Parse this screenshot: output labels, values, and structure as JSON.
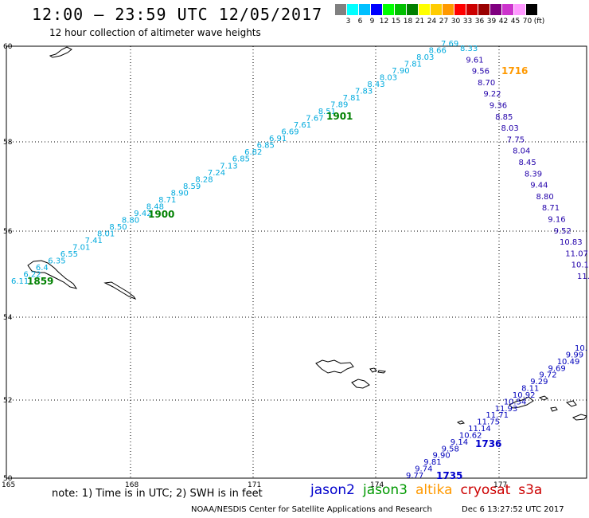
{
  "title": "12:00 – 23:59 UTC 12/05/2017",
  "subtitle": "12 hour collection of altimeter wave heights",
  "legend": {
    "colors": [
      "#808080",
      "#00ffff",
      "#00c0ff",
      "#0000ff",
      "#00ff00",
      "#00c000",
      "#008000",
      "#ffff00",
      "#ffcc00",
      "#ff9900",
      "#ff0000",
      "#cc0000",
      "#990000",
      "#800080",
      "#cc33cc",
      "#ff99ff",
      "#000000"
    ],
    "ticks": [
      "3",
      "6",
      "9",
      "12",
      "15",
      "18",
      "21",
      "24",
      "27",
      "30",
      "33",
      "36",
      "39",
      "42",
      "45",
      "70",
      "(ft)"
    ]
  },
  "axes": {
    "lat_labels": [
      "60",
      "58",
      "56",
      "54",
      "52",
      "50"
    ],
    "lon_labels": [
      "165",
      "168",
      "171",
      "174",
      "177"
    ]
  },
  "tracks": {
    "cyan": {
      "color": "#00b8e0",
      "values": [
        "6.11",
        "6.22",
        "6.4",
        "6.35",
        "6.55",
        "7.01",
        "7.41",
        "8.01",
        "8.50",
        "8.80",
        "9.42",
        "8.48",
        "8.71",
        "8.90",
        "8.59",
        "8.28",
        "7.24",
        "7.13",
        "6.85",
        "6.82",
        "6.85",
        "6.91",
        "6.69",
        "7.61",
        "7.67",
        "8.51",
        "7.89",
        "7.81",
        "7.83",
        "8.43",
        "8.03",
        "7.90",
        "7.81",
        "8.03",
        "8.66",
        "7.69"
      ]
    },
    "blue_north": {
      "color": "#00b8e0",
      "values": [
        "8.33",
        "9.61",
        "9.56",
        "8.70",
        "9.22",
        "9.36",
        "8.85",
        "8.03",
        "7.75",
        "8.04",
        "8.45",
        "8.39",
        "9.44",
        "8.80",
        "8.71",
        "9.16",
        "9.52",
        "10.83",
        "11.07",
        "10.1",
        "11."
      ]
    },
    "blue_south": {
      "color": "#0000cc",
      "values": [
        "9.77",
        "9.74",
        "9.81",
        "9.90",
        "9.58",
        "9.14",
        "10.62",
        "11.14",
        "11.75",
        "11.71",
        "11.93",
        "10.54",
        "10.92",
        "8.11",
        "9.29",
        "9.72",
        "9.69",
        "10.49",
        "9.99",
        "10."
      ]
    }
  },
  "times": {
    "t1859": "1859",
    "t1900": "1900",
    "t1901": "1901",
    "t1716": "1716",
    "t1736": "1736",
    "t1735": "1735"
  },
  "note": "note: 1) Time is in UTC; 2) SWH is in feet",
  "satellites": [
    {
      "name": "jason2",
      "color": "#0000cc"
    },
    {
      "name": "jason3",
      "color": "#009900"
    },
    {
      "name": "altika",
      "color": "#ff9900"
    },
    {
      "name": "cryosat",
      "color": "#cc0000"
    },
    {
      "name": "s3a",
      "color": "#cc0000"
    }
  ],
  "credit": "NOAA/NESDIS Center for Satellite Applications and Research",
  "timestamp": "Dec  6 13:27:52 UTC 2017"
}
